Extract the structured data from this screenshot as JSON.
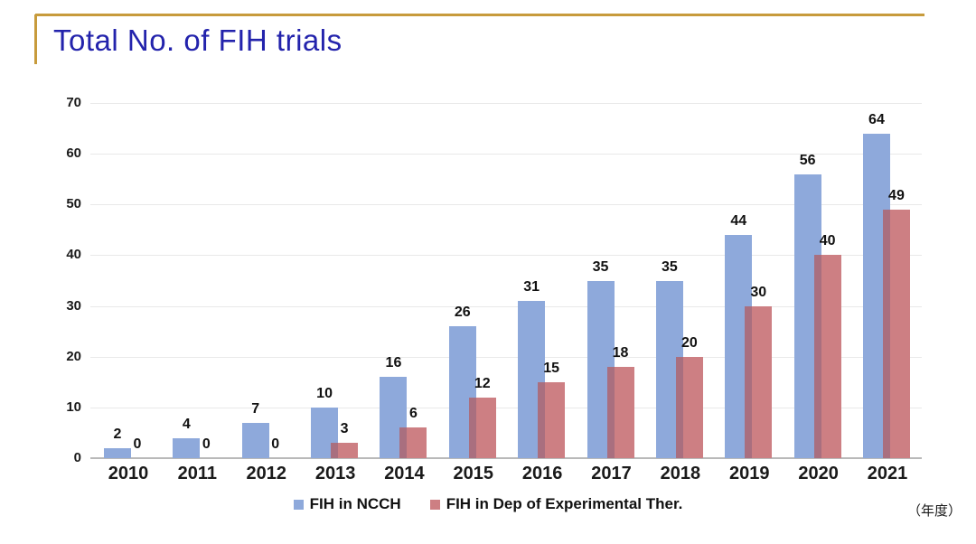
{
  "slide": {
    "title": "Total No. of FIH trials",
    "title_color": "#2323AC",
    "accent_color": "#C79B3C",
    "footer_note": "（年度）"
  },
  "chart_data": {
    "type": "bar",
    "title": "Total No. of FIH trials",
    "categories": [
      "2010",
      "2011",
      "2012",
      "2013",
      "2014",
      "2015",
      "2016",
      "2017",
      "2018",
      "2019",
      "2020",
      "2021"
    ],
    "series": [
      {
        "name": "FIH in NCCH",
        "color": "#8EA9DB",
        "values": [
          2,
          4,
          7,
          10,
          16,
          26,
          31,
          35,
          35,
          44,
          56,
          64
        ]
      },
      {
        "name": "FIH in Dep of Experimental Ther.",
        "color": "#CD7F83",
        "values": [
          0,
          0,
          0,
          3,
          6,
          12,
          15,
          18,
          20,
          30,
          40,
          49
        ]
      }
    ],
    "overlap_color": "#A96F7F",
    "bar_style": "overlapped",
    "data_labels": true,
    "xlabel": "",
    "ylabel": "",
    "ylim": [
      0,
      70
    ],
    "yticks": [
      0,
      10,
      20,
      30,
      40,
      50,
      60,
      70
    ],
    "grid": true,
    "legend_position": "bottom"
  }
}
